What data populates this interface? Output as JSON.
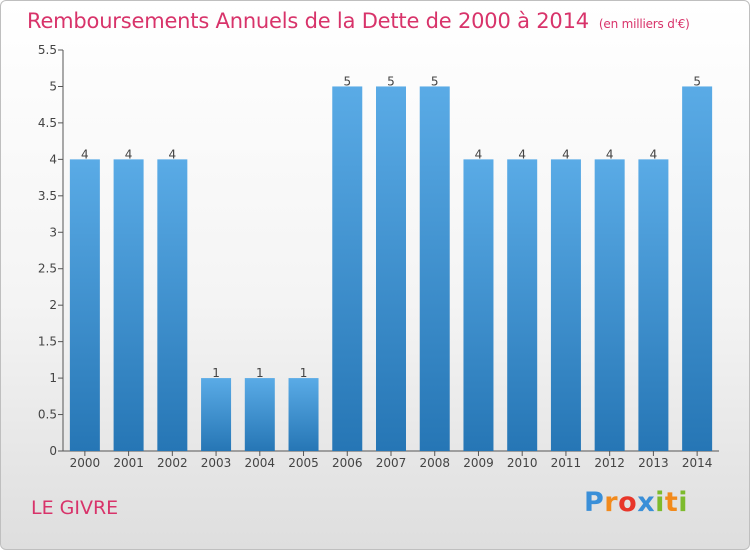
{
  "title": "Remboursements Annuels de la Dette de 2000 à 2014",
  "title_unit": "(en milliers d'€)",
  "commune": "LE GIVRE",
  "logo": {
    "letters": [
      "P",
      "r",
      "o",
      "x",
      "i",
      "t",
      "i"
    ],
    "colors": [
      "#3a8fd8",
      "#f28a1c",
      "#e8362a",
      "#3a8fd8",
      "#7dbb2d",
      "#f28a1c",
      "#7dbb2d"
    ]
  },
  "colors": {
    "title": "#d8336a",
    "bar_top": "#5aabe6",
    "bar_bottom": "#2676b5",
    "axis": "#555555"
  },
  "chart_data": {
    "type": "bar",
    "categories": [
      "2000",
      "2001",
      "2002",
      "2003",
      "2004",
      "2005",
      "2006",
      "2007",
      "2008",
      "2009",
      "2010",
      "2011",
      "2012",
      "2013",
      "2014"
    ],
    "values": [
      4,
      4,
      4,
      1,
      1,
      1,
      5,
      5,
      5,
      4,
      4,
      4,
      4,
      4,
      5
    ],
    "data_labels": [
      "4",
      "4",
      "4",
      "1",
      "1",
      "1",
      "5",
      "5",
      "5",
      "4",
      "4",
      "4",
      "4",
      "4",
      "5"
    ],
    "yticks": [
      "0",
      "0.5",
      "1",
      "1.5",
      "2",
      "2.5",
      "3",
      "3.5",
      "4",
      "4.5",
      "5",
      "5.5"
    ],
    "ylim": [
      0,
      5.5
    ],
    "grid": false
  }
}
